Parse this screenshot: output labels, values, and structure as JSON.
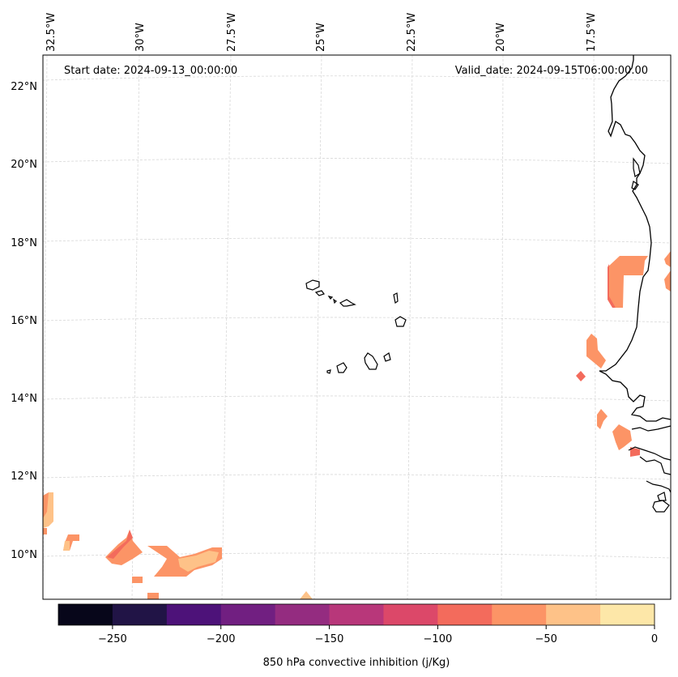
{
  "map": {
    "start_date_label": "Start date: 2024-09-13_00:00:00",
    "valid_date_label": "Valid_date: 2024-09-15T06:00:00.00",
    "longitude_labels": [
      "32.5°W",
      "30°W",
      "27.5°W",
      "25°W",
      "22.5°W",
      "20°W",
      "17.5°W"
    ],
    "latitude_labels": [
      "22°N",
      "20°N",
      "18°N",
      "16°N",
      "14°N",
      "12°N",
      "10°N"
    ]
  },
  "colorbar": {
    "label": "850 hPa convective inhibition (j/Kg)",
    "tick_labels": [
      "−250",
      "−200",
      "−150",
      "−100",
      "−50",
      "0"
    ],
    "colors": [
      "#07061a",
      "#211446",
      "#4d1279",
      "#711f81",
      "#942c80",
      "#b8377a",
      "#dc4869",
      "#f36b5c",
      "#fc9466",
      "#fec288",
      "#fde7a8"
    ]
  }
}
